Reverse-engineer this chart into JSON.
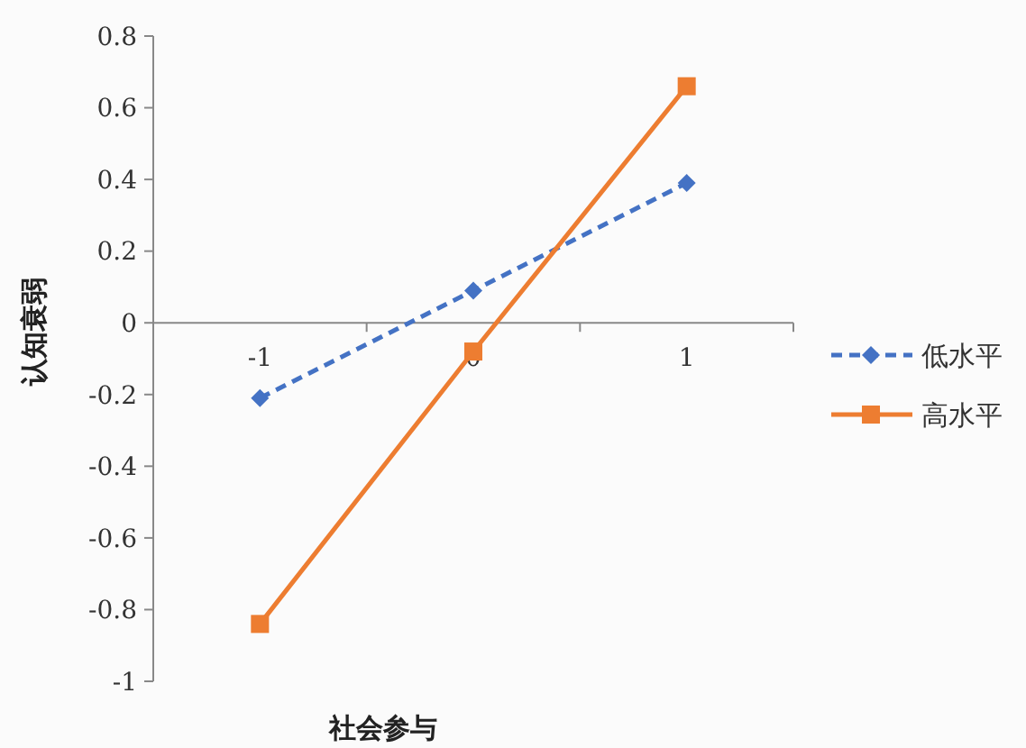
{
  "chart_data": {
    "type": "line",
    "xlabel": "社会参与",
    "ylabel": "认知衰弱",
    "categories": [
      "-1",
      "0",
      "1"
    ],
    "series": [
      {
        "name": "低水平",
        "color": "#4472c4",
        "values": [
          -0.21,
          0.09,
          0.39
        ],
        "marker": "diamond",
        "line_style": "dashed"
      },
      {
        "name": "高水平",
        "color": "#ed7d31",
        "values": [
          -0.84,
          -0.08,
          0.66
        ],
        "marker": "square",
        "line_style": "solid"
      }
    ],
    "ylim": [
      -1,
      0.8
    ],
    "yticks": [
      -1,
      -0.8,
      -0.6,
      -0.4,
      -0.2,
      0,
      0.2,
      0.4,
      0.6,
      0.8
    ],
    "grid": false,
    "legend": "right"
  }
}
